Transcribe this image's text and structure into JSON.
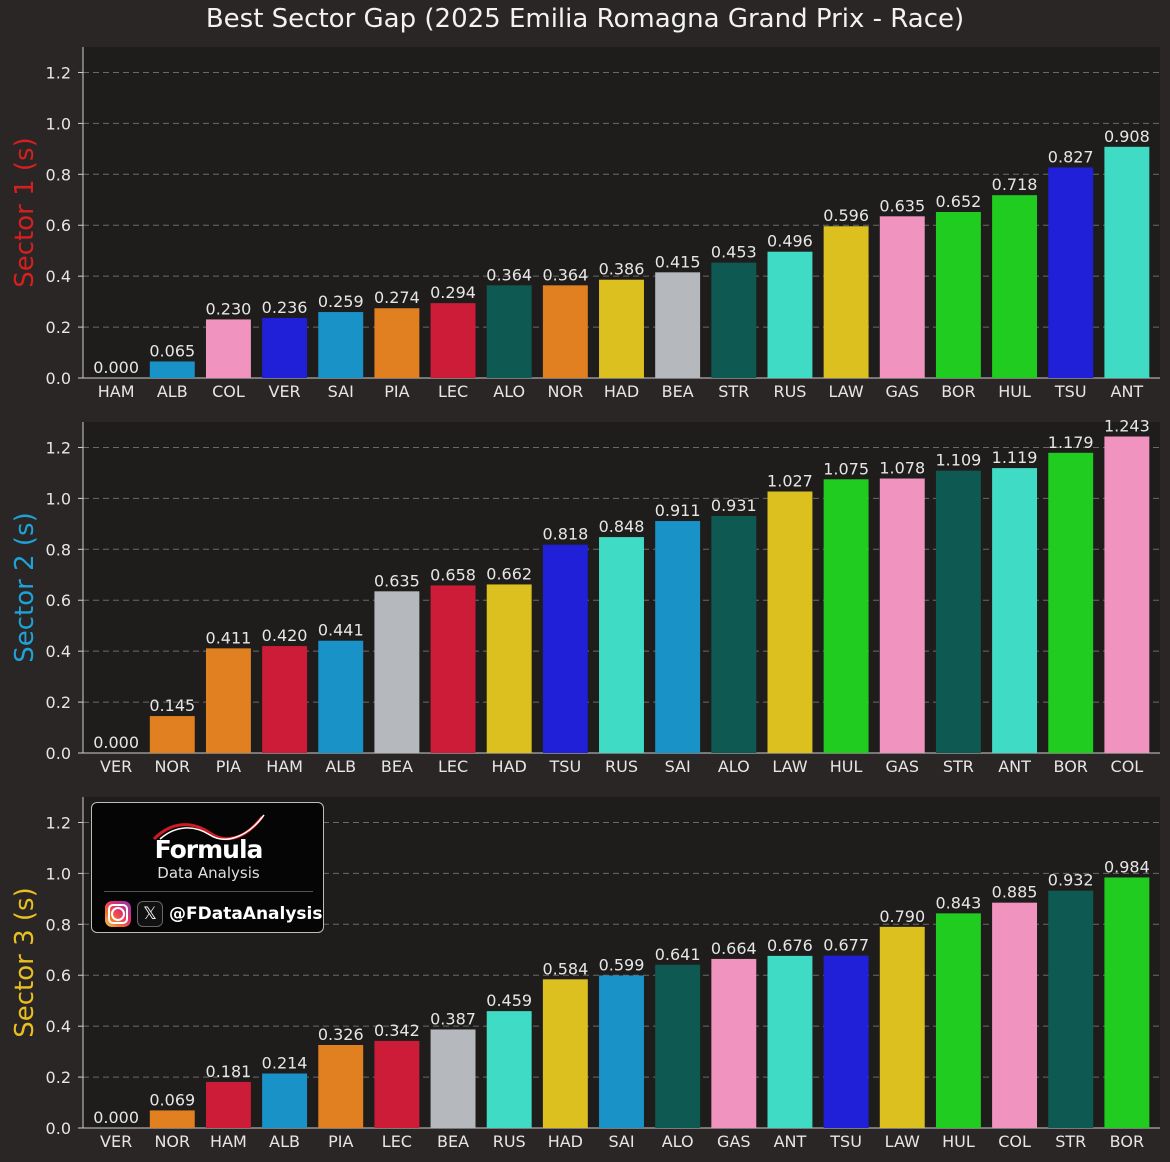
{
  "title": "Best Sector Gap (2025 Emilia Romagna Grand Prix - Race)",
  "team_colors": {
    "Mercedes": "#40dbc4",
    "Williams": "#1992c7",
    "Alpine": "#f094bf",
    "Red Bull": "#2020d8",
    "McLaren": "#e08020",
    "Ferrari": "#cc1c38",
    "Aston Martin": "#0e5a52",
    "Racing Bulls": "#dcc020",
    "Haas": "#b5b8bc",
    "Sauber": "#20cc20"
  },
  "chart_data": [
    {
      "type": "bar",
      "ylabel": "Sector 1 (s)",
      "ylabel_color": "#d81f1f",
      "ylim": [
        0,
        1.3
      ],
      "yticks": [
        "0.0",
        "0.2",
        "0.4",
        "0.6",
        "0.8",
        "1.0",
        "1.2"
      ],
      "grid": true,
      "categories": [
        "HAM",
        "ALB",
        "COL",
        "VER",
        "SAI",
        "PIA",
        "LEC",
        "ALO",
        "NOR",
        "HAD",
        "BEA",
        "STR",
        "RUS",
        "LAW",
        "GAS",
        "BOR",
        "HUL",
        "TSU",
        "ANT"
      ],
      "values": [
        0.0,
        0.065,
        0.23,
        0.236,
        0.259,
        0.274,
        0.294,
        0.364,
        0.364,
        0.386,
        0.415,
        0.453,
        0.496,
        0.596,
        0.635,
        0.652,
        0.718,
        0.827,
        0.908
      ],
      "labels": [
        "0.000",
        "0.065",
        "0.230",
        "0.236",
        "0.259",
        "0.274",
        "0.294",
        "0.364",
        "0.364",
        "0.386",
        "0.415",
        "0.453",
        "0.496",
        "0.596",
        "0.635",
        "0.652",
        "0.718",
        "0.827",
        "0.908"
      ],
      "colors": [
        "#cc1c38",
        "#1992c7",
        "#f094bf",
        "#2020d8",
        "#1992c7",
        "#e08020",
        "#cc1c38",
        "#0e5a52",
        "#e08020",
        "#dcc020",
        "#b5b8bc",
        "#0e5a52",
        "#40dbc4",
        "#dcc020",
        "#f094bf",
        "#20cc20",
        "#20cc20",
        "#2020d8",
        "#40dbc4"
      ]
    },
    {
      "type": "bar",
      "ylabel": "Sector 2 (s)",
      "ylabel_color": "#1fa2d8",
      "ylim": [
        0,
        1.3
      ],
      "yticks": [
        "0.0",
        "0.2",
        "0.4",
        "0.6",
        "0.8",
        "1.0",
        "1.2"
      ],
      "grid": true,
      "categories": [
        "VER",
        "NOR",
        "PIA",
        "HAM",
        "ALB",
        "BEA",
        "LEC",
        "HAD",
        "TSU",
        "RUS",
        "SAI",
        "ALO",
        "LAW",
        "HUL",
        "GAS",
        "STR",
        "ANT",
        "BOR",
        "COL"
      ],
      "values": [
        0.0,
        0.145,
        0.411,
        0.42,
        0.441,
        0.635,
        0.658,
        0.662,
        0.818,
        0.848,
        0.911,
        0.931,
        1.027,
        1.075,
        1.078,
        1.109,
        1.119,
        1.179,
        1.243
      ],
      "labels": [
        "0.000",
        "0.145",
        "0.411",
        "0.420",
        "0.441",
        "0.635",
        "0.658",
        "0.662",
        "0.818",
        "0.848",
        "0.911",
        "0.931",
        "1.027",
        "1.075",
        "1.078",
        "1.109",
        "1.119",
        "1.179",
        "1.243"
      ],
      "colors": [
        "#2020d8",
        "#e08020",
        "#e08020",
        "#cc1c38",
        "#1992c7",
        "#b5b8bc",
        "#cc1c38",
        "#dcc020",
        "#2020d8",
        "#40dbc4",
        "#1992c7",
        "#0e5a52",
        "#dcc020",
        "#20cc20",
        "#f094bf",
        "#0e5a52",
        "#40dbc4",
        "#20cc20",
        "#f094bf"
      ]
    },
    {
      "type": "bar",
      "ylabel": "Sector 3 (s)",
      "ylabel_color": "#e8c020",
      "ylim": [
        0,
        1.3
      ],
      "yticks": [
        "0.0",
        "0.2",
        "0.4",
        "0.6",
        "0.8",
        "1.0",
        "1.2"
      ],
      "grid": true,
      "categories": [
        "VER",
        "NOR",
        "HAM",
        "ALB",
        "PIA",
        "LEC",
        "BEA",
        "RUS",
        "HAD",
        "SAI",
        "ALO",
        "GAS",
        "ANT",
        "TSU",
        "LAW",
        "HUL",
        "COL",
        "STR",
        "BOR"
      ],
      "values": [
        0.0,
        0.069,
        0.181,
        0.214,
        0.326,
        0.342,
        0.387,
        0.459,
        0.584,
        0.599,
        0.641,
        0.664,
        0.676,
        0.677,
        0.79,
        0.843,
        0.885,
        0.932,
        0.984
      ],
      "labels": [
        "0.000",
        "0.069",
        "0.181",
        "0.214",
        "0.326",
        "0.342",
        "0.387",
        "0.459",
        "0.584",
        "0.599",
        "0.641",
        "0.664",
        "0.676",
        "0.677",
        "0.790",
        "0.843",
        "0.885",
        "0.932",
        "0.984"
      ],
      "colors": [
        "#2020d8",
        "#e08020",
        "#cc1c38",
        "#1992c7",
        "#e08020",
        "#cc1c38",
        "#b5b8bc",
        "#40dbc4",
        "#dcc020",
        "#1992c7",
        "#0e5a52",
        "#f094bf",
        "#40dbc4",
        "#2020d8",
        "#dcc020",
        "#20cc20",
        "#f094bf",
        "#0e5a52",
        "#20cc20"
      ]
    }
  ],
  "logo": {
    "name": "Formula",
    "subtitle": "Data Analysis",
    "handle": "@FDataAnalysis",
    "icons": [
      "instagram-icon",
      "x-icon"
    ]
  }
}
